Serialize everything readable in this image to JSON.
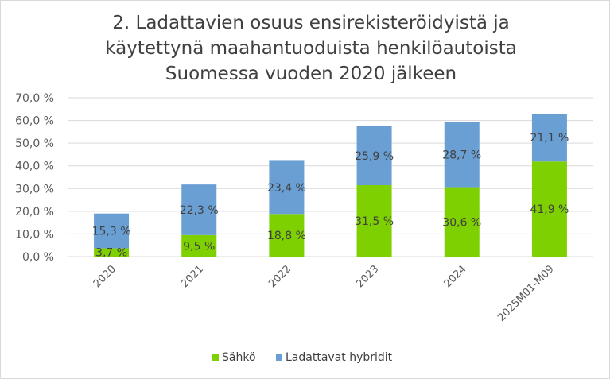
{
  "chart_data": {
    "type": "bar",
    "stacked": true,
    "title": [
      "2. Ladattavien osuus ensirekisteröidyistä ja",
      "käytettynä maahantuoduista henkilöautoista",
      "Suomessa vuoden 2020 jälkeen"
    ],
    "categories": [
      "2020",
      "2021",
      "2022",
      "2023",
      "2024",
      "2025M01-M09"
    ],
    "series": [
      {
        "name": "Sähkö",
        "color": "#7fd000",
        "values": [
          3.7,
          9.5,
          18.8,
          31.5,
          30.6,
          41.9
        ],
        "labels": [
          "3,7 %",
          "9,5 %",
          "18,8 %",
          "31,5 %",
          "30,6 %",
          "41,9 %"
        ]
      },
      {
        "name": "Ladattavat hybridit",
        "color": "#6a9fd4",
        "values": [
          15.3,
          22.3,
          23.4,
          25.9,
          28.7,
          21.1
        ],
        "labels": [
          "15,3 %",
          "22,3 %",
          "23,4 %",
          "25,9 %",
          "28,7 %",
          "21,1 %"
        ]
      }
    ],
    "ylim": [
      0,
      70
    ],
    "yticks": [
      0,
      10,
      20,
      30,
      40,
      50,
      60,
      70
    ],
    "ytick_labels": [
      "0,0 %",
      "10,0 %",
      "20,0 %",
      "30,0 %",
      "40,0 %",
      "50,0 %",
      "60,0 %",
      "70,0 %"
    ],
    "grid": true,
    "legend": "bottom"
  }
}
